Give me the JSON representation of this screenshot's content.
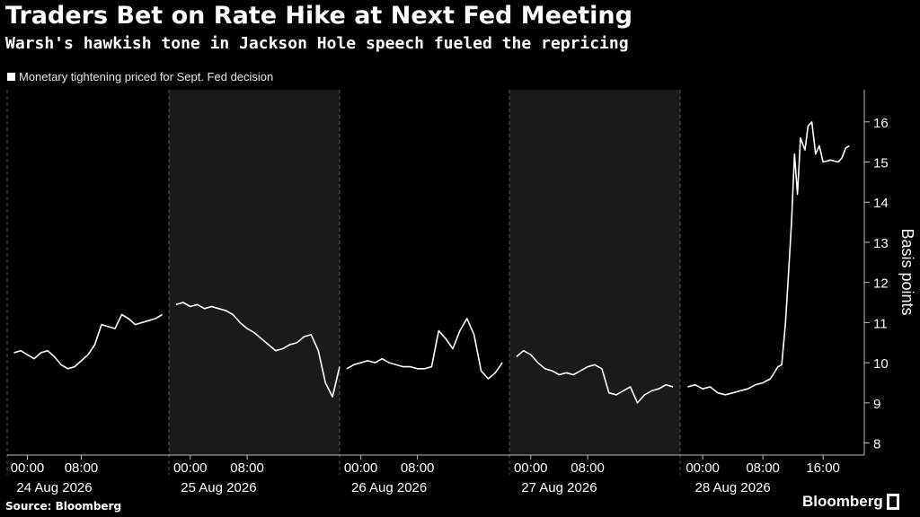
{
  "title": "Traders Bet on Rate Hike at Next Fed Meeting",
  "subtitle": "Warsh's hawkish tone in Jackson Hole speech fueled the repricing",
  "source": "Source: Bloomberg",
  "brand": "Bloomberg",
  "colors": {
    "background": "#000000",
    "line": "#ffffff",
    "shade": "#1a1a1a",
    "grid": "#555555"
  },
  "chart_data": {
    "type": "line",
    "legend": [
      "Monetary tightening priced for Sept. Fed decision"
    ],
    "ylabel": "Basis points",
    "ylim": [
      7.7,
      16.8
    ],
    "y_ticks": [
      8,
      9,
      10,
      11,
      12,
      13,
      14,
      15,
      16
    ],
    "y_axis_position": "right",
    "grid": "dashed-vertical",
    "legend_position": "top-left",
    "days": [
      {
        "date": "24 Aug 2026",
        "start_hour": -3,
        "end_hour": 21,
        "shaded": false
      },
      {
        "date": "25 Aug 2026",
        "start_hour": -3,
        "end_hour": 21,
        "shaded": true
      },
      {
        "date": "26 Aug 2026",
        "start_hour": -3,
        "end_hour": 21,
        "shaded": false
      },
      {
        "date": "27 Aug 2026",
        "start_hour": -3,
        "end_hour": 21,
        "shaded": true
      },
      {
        "date": "28 Aug 2026",
        "start_hour": -3,
        "end_hour": 21,
        "shaded": false
      }
    ],
    "x_tick_labels": [
      [
        "00:00",
        "08:00"
      ],
      [
        "00:00",
        "08:00"
      ],
      [
        "00:00",
        "08:00"
      ],
      [
        "00:00",
        "08:00"
      ],
      [
        "00:00",
        "08:00",
        "16:00"
      ]
    ],
    "series": [
      {
        "segments": [
          [
            [
              0,
              -2,
              10.25
            ],
            [
              0,
              -1,
              10.3
            ],
            [
              0,
              0,
              10.2
            ],
            [
              0,
              1,
              10.1
            ],
            [
              0,
              2,
              10.25
            ],
            [
              0,
              3,
              10.3
            ],
            [
              0,
              4,
              10.15
            ],
            [
              0,
              5,
              9.95
            ],
            [
              0,
              6,
              9.85
            ],
            [
              0,
              7,
              9.9
            ],
            [
              0,
              8,
              10.05
            ],
            [
              0,
              9,
              10.2
            ],
            [
              0,
              10,
              10.45
            ],
            [
              0,
              11,
              10.95
            ],
            [
              0,
              12,
              10.9
            ],
            [
              0,
              13,
              10.85
            ],
            [
              0,
              14,
              11.2
            ],
            [
              0,
              15,
              11.1
            ],
            [
              0,
              16,
              10.95
            ],
            [
              0,
              17,
              11.0
            ],
            [
              0,
              18,
              11.05
            ],
            [
              0,
              19,
              11.1
            ],
            [
              0,
              20,
              11.2
            ]
          ],
          [
            [
              1,
              -2,
              11.45
            ],
            [
              1,
              -1,
              11.5
            ],
            [
              1,
              0,
              11.4
            ],
            [
              1,
              1,
              11.45
            ],
            [
              1,
              2,
              11.35
            ],
            [
              1,
              3,
              11.4
            ],
            [
              1,
              4,
              11.35
            ],
            [
              1,
              5,
              11.3
            ],
            [
              1,
              6,
              11.2
            ],
            [
              1,
              7,
              11.0
            ],
            [
              1,
              8,
              10.85
            ],
            [
              1,
              9,
              10.75
            ],
            [
              1,
              10,
              10.6
            ],
            [
              1,
              11,
              10.45
            ],
            [
              1,
              12,
              10.3
            ],
            [
              1,
              13,
              10.35
            ],
            [
              1,
              14,
              10.45
            ],
            [
              1,
              15,
              10.5
            ],
            [
              1,
              16,
              10.65
            ],
            [
              1,
              17,
              10.7
            ],
            [
              1,
              18,
              10.3
            ],
            [
              1,
              19,
              9.5
            ],
            [
              1,
              20,
              9.15
            ],
            [
              1,
              21,
              9.9
            ]
          ],
          [
            [
              2,
              -2,
              9.85
            ],
            [
              2,
              -1,
              9.95
            ],
            [
              2,
              0,
              10.0
            ],
            [
              2,
              1,
              10.05
            ],
            [
              2,
              2,
              10.0
            ],
            [
              2,
              3,
              10.1
            ],
            [
              2,
              4,
              10.0
            ],
            [
              2,
              5,
              9.95
            ],
            [
              2,
              6,
              9.9
            ],
            [
              2,
              7,
              9.9
            ],
            [
              2,
              8,
              9.85
            ],
            [
              2,
              9,
              9.85
            ],
            [
              2,
              10,
              9.9
            ],
            [
              2,
              11,
              10.8
            ],
            [
              2,
              12,
              10.6
            ],
            [
              2,
              13,
              10.35
            ],
            [
              2,
              14,
              10.8
            ],
            [
              2,
              15,
              11.1
            ],
            [
              2,
              16,
              10.7
            ],
            [
              2,
              17,
              9.8
            ],
            [
              2,
              18,
              9.6
            ],
            [
              2,
              19,
              9.75
            ],
            [
              2,
              20,
              10.0
            ]
          ],
          [
            [
              3,
              -2,
              10.15
            ],
            [
              3,
              -1,
              10.3
            ],
            [
              3,
              0,
              10.2
            ],
            [
              3,
              1,
              10.0
            ],
            [
              3,
              2,
              9.85
            ],
            [
              3,
              3,
              9.8
            ],
            [
              3,
              4,
              9.7
            ],
            [
              3,
              5,
              9.75
            ],
            [
              3,
              6,
              9.7
            ],
            [
              3,
              7,
              9.8
            ],
            [
              3,
              8,
              9.9
            ],
            [
              3,
              9,
              9.95
            ],
            [
              3,
              10,
              9.85
            ],
            [
              3,
              11,
              9.25
            ],
            [
              3,
              12,
              9.2
            ],
            [
              3,
              13,
              9.3
            ],
            [
              3,
              14,
              9.4
            ],
            [
              3,
              15,
              9.0
            ],
            [
              3,
              16,
              9.2
            ],
            [
              3,
              17,
              9.3
            ],
            [
              3,
              18,
              9.35
            ],
            [
              3,
              19,
              9.45
            ],
            [
              3,
              20,
              9.4
            ]
          ],
          [
            [
              4,
              -2,
              9.4
            ],
            [
              4,
              -1,
              9.45
            ],
            [
              4,
              0,
              9.35
            ],
            [
              4,
              1,
              9.4
            ],
            [
              4,
              2,
              9.25
            ],
            [
              4,
              3,
              9.2
            ],
            [
              4,
              4,
              9.25
            ],
            [
              4,
              5,
              9.3
            ],
            [
              4,
              6,
              9.35
            ],
            [
              4,
              7,
              9.45
            ],
            [
              4,
              8,
              9.5
            ],
            [
              4,
              9,
              9.6
            ],
            [
              4,
              10,
              9.9
            ],
            [
              4,
              10.5,
              9.95
            ],
            [
              4,
              11,
              11.0
            ],
            [
              4,
              11.4,
              12.2
            ],
            [
              4,
              11.8,
              13.5
            ],
            [
              4,
              12.2,
              15.2
            ],
            [
              4,
              12.6,
              14.2
            ],
            [
              4,
              13,
              15.6
            ],
            [
              4,
              13.6,
              15.3
            ],
            [
              4,
              14,
              15.9
            ],
            [
              4,
              14.5,
              16.0
            ],
            [
              4,
              15,
              15.2
            ],
            [
              4,
              15.5,
              15.4
            ],
            [
              4,
              16,
              15.0
            ],
            [
              4,
              17,
              15.05
            ],
            [
              4,
              18,
              15.0
            ],
            [
              4,
              18.5,
              15.1
            ],
            [
              4,
              19,
              15.35
            ],
            [
              4,
              19.5,
              15.4
            ]
          ]
        ]
      }
    ]
  }
}
